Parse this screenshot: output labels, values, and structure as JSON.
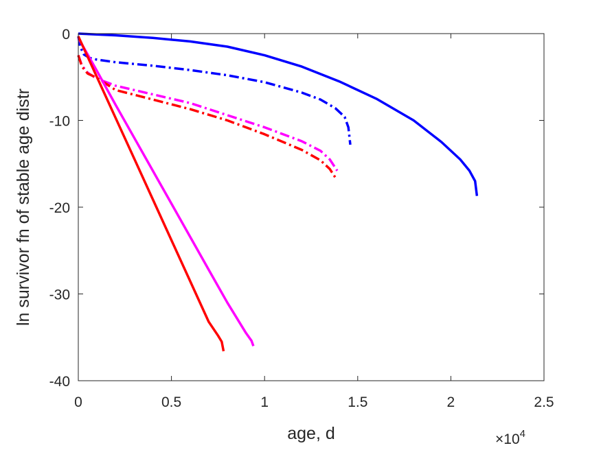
{
  "chart_data": {
    "type": "line",
    "title": "",
    "xlabel": "age, d",
    "ylabel": "ln survivor fn of stable age distr",
    "x_exponent_label": "×10",
    "x_exponent_power": "4",
    "xlim": [
      0,
      25000
    ],
    "ylim": [
      -40,
      0
    ],
    "x_ticks": [
      0,
      5000,
      10000,
      15000,
      20000,
      25000
    ],
    "x_tick_labels": [
      "0",
      "0.5",
      "1",
      "1.5",
      "2",
      "2.5"
    ],
    "y_ticks": [
      0,
      -10,
      -20,
      -30,
      -40
    ],
    "y_tick_labels": [
      "0",
      "-10",
      "-20",
      "-30",
      "-40"
    ],
    "grid": false,
    "box": true,
    "series": [
      {
        "color": "#0000ff",
        "style": "solid",
        "x": [
          0,
          2000,
          4000,
          6000,
          8000,
          10000,
          12000,
          14000,
          16000,
          18000,
          19500,
          20500,
          21000,
          21300,
          21400
        ],
        "y": [
          0,
          -0.2,
          -0.5,
          -0.9,
          -1.5,
          -2.5,
          -3.8,
          -5.5,
          -7.5,
          -10.0,
          -12.5,
          -14.5,
          -15.8,
          -17.0,
          -18.7
        ]
      },
      {
        "color": "#0000ff",
        "style": "dashdot",
        "x": [
          0,
          100,
          300,
          600,
          1000,
          2000,
          4000,
          6000,
          8000,
          10000,
          12000,
          13000,
          13800,
          14300,
          14500,
          14600
        ],
        "y": [
          -0.3,
          -1.5,
          -2.4,
          -2.8,
          -3.0,
          -3.3,
          -3.7,
          -4.2,
          -4.8,
          -5.6,
          -6.8,
          -7.6,
          -8.6,
          -9.6,
          -10.8,
          -12.8
        ]
      },
      {
        "color": "#ff00ff",
        "style": "dashdot",
        "x": [
          0,
          200,
          500,
          1000,
          1500,
          2000,
          4000,
          6000,
          8000,
          10000,
          12000,
          13000,
          13500,
          13900
        ],
        "y": [
          -2.5,
          -3.7,
          -4.5,
          -5.2,
          -5.6,
          -6.0,
          -7.0,
          -8.0,
          -9.4,
          -10.8,
          -12.4,
          -13.5,
          -14.5,
          -15.8
        ]
      },
      {
        "color": "#ff0000",
        "style": "dashdot",
        "x": [
          0,
          200,
          500,
          1000,
          1500,
          2000,
          4000,
          6000,
          8000,
          10000,
          12000,
          13000,
          13500,
          13800
        ],
        "y": [
          -2.5,
          -3.8,
          -4.6,
          -5.1,
          -5.8,
          -6.5,
          -7.6,
          -8.7,
          -10.0,
          -11.6,
          -13.4,
          -14.6,
          -15.6,
          -16.6
        ]
      },
      {
        "color": "#ff00ff",
        "style": "solid",
        "x": [
          0,
          1000,
          2000,
          3000,
          4000,
          5000,
          6000,
          7000,
          8000,
          9000,
          9300,
          9400
        ],
        "y": [
          -0.5,
          -4.3,
          -8.2,
          -12.0,
          -15.8,
          -19.6,
          -23.4,
          -27.2,
          -31.0,
          -34.5,
          -35.4,
          -36.0
        ]
      },
      {
        "color": "#ff0000",
        "style": "solid",
        "x": [
          0,
          1000,
          2000,
          3000,
          4000,
          5000,
          6000,
          7000,
          7500,
          7700,
          7800
        ],
        "y": [
          -0.3,
          -5.0,
          -9.7,
          -14.4,
          -19.1,
          -23.8,
          -28.5,
          -33.2,
          -34.8,
          -35.5,
          -36.6
        ]
      }
    ]
  }
}
